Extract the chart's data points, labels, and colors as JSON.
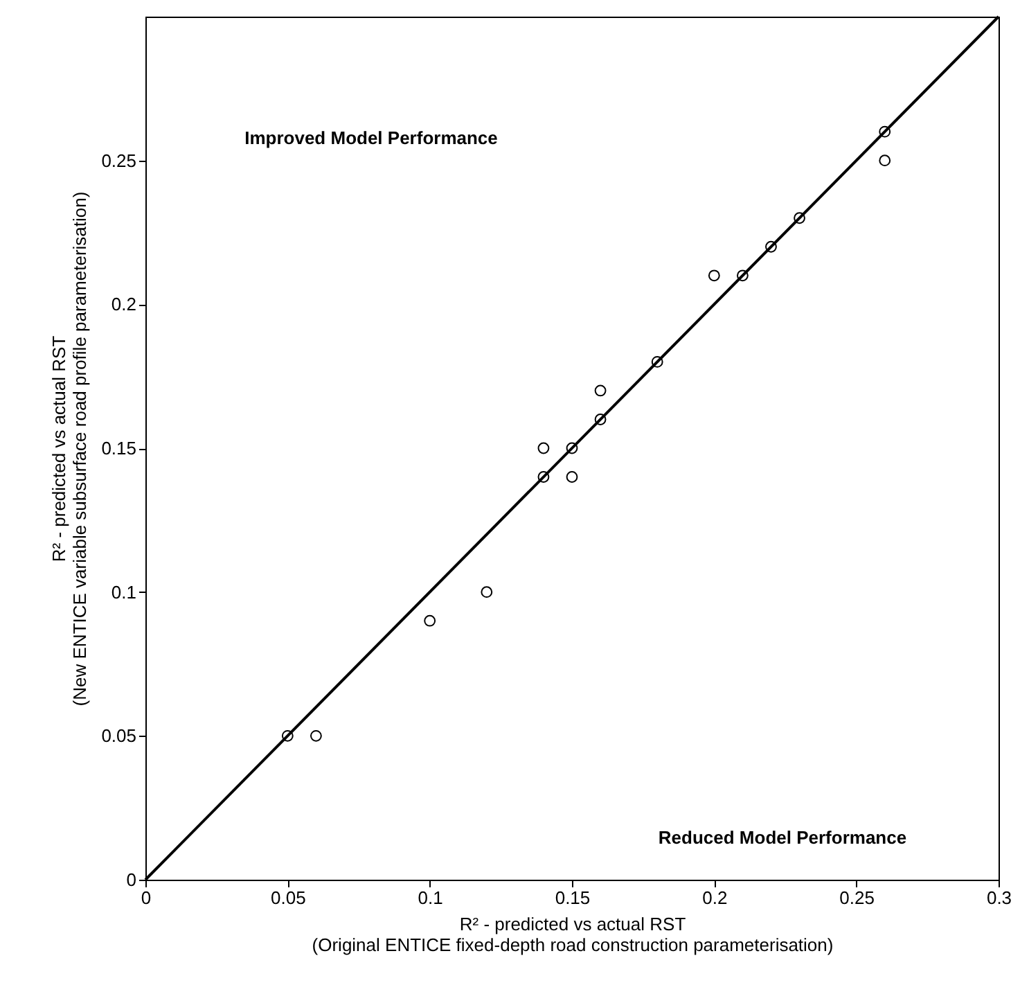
{
  "chart_data": {
    "type": "scatter",
    "xlabel": "R² - predicted vs actual RST\n(Original ENTICE fixed-depth road construction parameterisation)",
    "ylabel": "R² - predicted vs actual RST\n(New ENTICE variable subsurface road profile parameterisation)",
    "annotations": [
      "Improved Model Performance",
      "Reduced Model Performance"
    ],
    "xlim": [
      0,
      0.3
    ],
    "ylim": [
      0,
      0.3
    ],
    "xticks": [
      0,
      0.05,
      0.1,
      0.15,
      0.2,
      0.25,
      0.3
    ],
    "yticks": [
      0,
      0.05,
      0.1,
      0.15,
      0.2,
      0.25
    ],
    "series": [
      {
        "type": "line",
        "color": "#000000",
        "x": [
          0,
          0.3
        ],
        "values": [
          0,
          0.3
        ]
      },
      {
        "marker": "circle",
        "color": "#000000",
        "x": [
          0.05,
          0.06,
          0.1,
          0.12,
          0.14,
          0.14,
          0.15,
          0.15,
          0.16,
          0.16,
          0.18,
          0.2,
          0.21,
          0.22,
          0.23,
          0.26,
          0.26
        ],
        "values": [
          0.05,
          0.05,
          0.09,
          0.1,
          0.14,
          0.15,
          0.15,
          0.14,
          0.16,
          0.17,
          0.18,
          0.21,
          0.21,
          0.22,
          0.23,
          0.26,
          0.25
        ]
      }
    ]
  }
}
